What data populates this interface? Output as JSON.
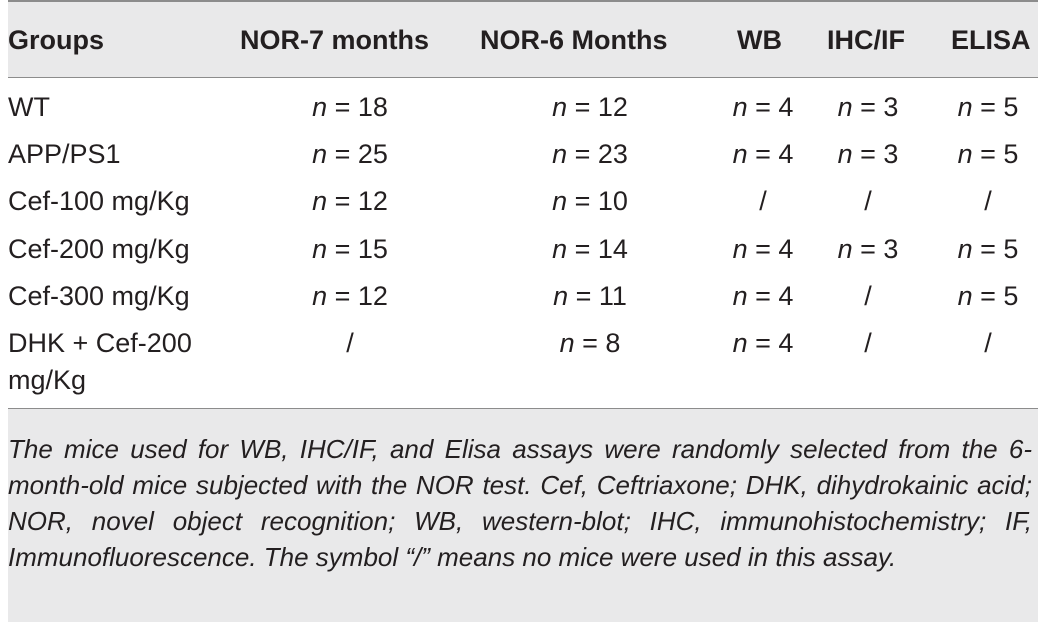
{
  "table": {
    "headers": [
      "Groups",
      "NOR-7 months",
      "NOR-6 Months",
      "WB",
      "IHC/IF",
      "ELISA"
    ],
    "rows": [
      {
        "group": "WT",
        "nor7": "n = 18",
        "nor6": "n = 12",
        "wb": "n = 4",
        "ihcif": "n = 3",
        "elisa": "n = 5"
      },
      {
        "group": "APP/PS1",
        "nor7": "n = 25",
        "nor6": "n = 23",
        "wb": "n = 4",
        "ihcif": "n = 3",
        "elisa": "n = 5"
      },
      {
        "group": "Cef-100 mg/Kg",
        "nor7": "n = 12",
        "nor6": "n = 10",
        "wb": "/",
        "ihcif": "/",
        "elisa": "/"
      },
      {
        "group": "Cef-200 mg/Kg",
        "nor7": "n = 15",
        "nor6": "n = 14",
        "wb": "n = 4",
        "ihcif": "n = 3",
        "elisa": "n = 5"
      },
      {
        "group": "Cef-300 mg/Kg",
        "nor7": "n = 12",
        "nor6": "n = 11",
        "wb": "n = 4",
        "ihcif": "/",
        "elisa": "n = 5"
      },
      {
        "group": "DHK + Cef-200 mg/Kg",
        "nor7": "/",
        "nor6": "n = 8",
        "wb": "n = 4",
        "ihcif": "/",
        "elisa": "/"
      }
    ]
  },
  "footnote": "The mice used for WB, IHC/IF, and Elisa assays were randomly selected from the 6-month-old mice subjected with the NOR test. Cef, Ceftriaxone; DHK, dihydrokainic acid; NOR, novel object recognition; WB, western-blot; IHC, immunohistochemistry; IF, Immunofluorescence. The symbol “/” means no mice were used in this assay."
}
